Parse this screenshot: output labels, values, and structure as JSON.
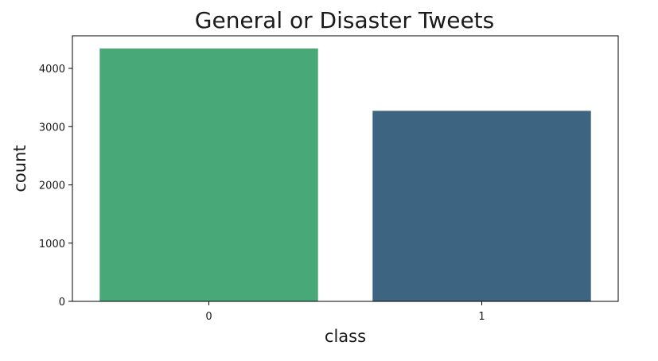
{
  "chart_data": {
    "type": "bar",
    "title": "General or Disaster Tweets",
    "xlabel": "class",
    "ylabel": "count",
    "categories": [
      "0",
      "1"
    ],
    "values": [
      4342,
      3271
    ],
    "colors": [
      "#48a878",
      "#3d6480"
    ],
    "ylim": [
      0,
      4560
    ],
    "yticks": [
      0,
      1000,
      2000,
      3000,
      4000
    ],
    "grid": false,
    "legend": "none"
  }
}
